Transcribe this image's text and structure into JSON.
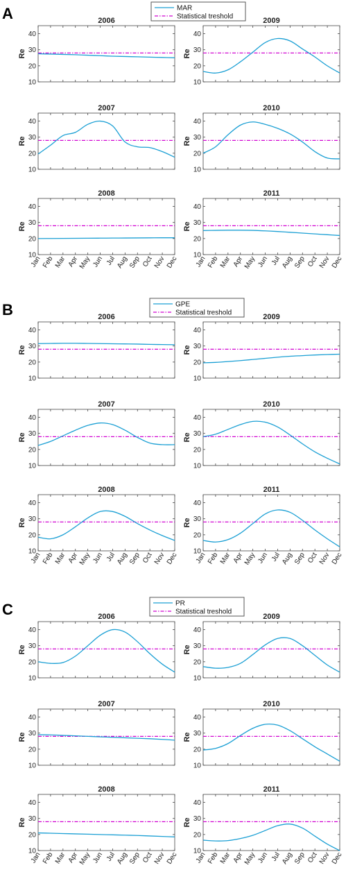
{
  "chart_data": {
    "type": "line",
    "ylabel": "Re",
    "ylim": [
      10,
      45
    ],
    "yticks": [
      10,
      20,
      30,
      40
    ],
    "months": [
      "Jan",
      "Feb",
      "Mar",
      "Apr",
      "May",
      "Jun",
      "Jul",
      "Aug",
      "Sep",
      "Oct",
      "Nov",
      "Dec"
    ],
    "threshold": 28,
    "threshold_label": "Statistical treshold",
    "line_color": "#1a9fd4",
    "threshold_color": "#d100d1",
    "panels": [
      {
        "label": "A",
        "series_name": "MAR",
        "charts": [
          {
            "title": "2006",
            "values": [
              27.5,
              27.3,
              27.1,
              26.9,
              26.6,
              26.3,
              26.0,
              25.8,
              25.6,
              25.4,
              25.2,
              25.0
            ]
          },
          {
            "title": "2009",
            "values": [
              16.5,
              15.5,
              17.5,
              22.5,
              28.5,
              34.5,
              37.0,
              35.5,
              30.5,
              25.5,
              20.0,
              15.5
            ]
          },
          {
            "title": "2007",
            "values": [
              19.5,
              25.0,
              31.0,
              33.0,
              38.0,
              40.0,
              37.0,
              27.0,
              24.0,
              23.5,
              21.0,
              17.5
            ]
          },
          {
            "title": "2010",
            "values": [
              20.0,
              24.0,
              31.5,
              37.5,
              39.5,
              38.0,
              35.5,
              32.0,
              27.0,
              21.0,
              17.0,
              16.5
            ]
          },
          {
            "title": "2008",
            "values": [
              20.0,
              20.05,
              20.1,
              20.15,
              20.2,
              20.25,
              20.3,
              20.35,
              20.4,
              20.45,
              20.5,
              20.5
            ]
          },
          {
            "title": "2011",
            "values": [
              25.0,
              25.1,
              25.2,
              25.2,
              25.1,
              24.8,
              24.4,
              23.9,
              23.4,
              22.9,
              22.4,
              21.9
            ]
          }
        ]
      },
      {
        "label": "B",
        "series_name": "GPE",
        "charts": [
          {
            "title": "2006",
            "values": [
              31.5,
              31.6,
              31.7,
              31.7,
              31.6,
              31.5,
              31.4,
              31.3,
              31.2,
              31.0,
              30.9,
              30.8
            ]
          },
          {
            "title": "2009",
            "values": [
              19.5,
              19.8,
              20.3,
              20.9,
              21.6,
              22.3,
              23.0,
              23.6,
              24.0,
              24.4,
              24.7,
              24.9
            ]
          },
          {
            "title": "2007",
            "values": [
              22.5,
              25.0,
              28.5,
              32.0,
              35.0,
              36.5,
              35.5,
              32.0,
              27.5,
              24.0,
              23.0,
              23.0
            ]
          },
          {
            "title": "2010",
            "values": [
              28.0,
              29.5,
              32.5,
              35.5,
              37.5,
              37.0,
              34.0,
              29.0,
              23.5,
              18.5,
              14.5,
              11.0
            ]
          },
          {
            "title": "2008",
            "values": [
              18.5,
              17.5,
              20.0,
              25.0,
              30.5,
              34.5,
              34.5,
              31.5,
              27.0,
              23.0,
              19.5,
              16.5
            ]
          },
          {
            "title": "2011",
            "values": [
              16.5,
              15.5,
              17.0,
              21.0,
              27.0,
              33.0,
              35.5,
              34.0,
              29.0,
              23.0,
              17.5,
              12.5
            ]
          }
        ]
      },
      {
        "label": "C",
        "series_name": "PR",
        "charts": [
          {
            "title": "2006",
            "values": [
              20.0,
              19.0,
              19.5,
              23.5,
              30.0,
              36.5,
              40.0,
              38.5,
              32.5,
              25.0,
              18.5,
              13.5
            ]
          },
          {
            "title": "2009",
            "values": [
              17.0,
              16.0,
              16.5,
              19.0,
              24.5,
              30.5,
              34.5,
              34.5,
              30.0,
              24.0,
              18.0,
              13.5
            ]
          },
          {
            "title": "2007",
            "values": [
              29.0,
              28.9,
              28.6,
              28.3,
              28.0,
              27.7,
              27.4,
              27.1,
              26.8,
              26.5,
              26.1,
              25.6
            ]
          },
          {
            "title": "2010",
            "values": [
              19.5,
              20.5,
              23.5,
              28.5,
              33.0,
              35.5,
              35.0,
              31.5,
              26.5,
              21.5,
              17.0,
              12.5
            ]
          },
          {
            "title": "2008",
            "values": [
              21.0,
              20.8,
              20.6,
              20.4,
              20.2,
              20.0,
              19.8,
              19.6,
              19.4,
              19.1,
              18.8,
              18.5
            ]
          },
          {
            "title": "2011",
            "values": [
              16.5,
              16.0,
              16.2,
              17.5,
              19.5,
              22.5,
              25.5,
              26.5,
              24.0,
              19.0,
              14.0,
              10.0
            ]
          }
        ]
      }
    ]
  }
}
